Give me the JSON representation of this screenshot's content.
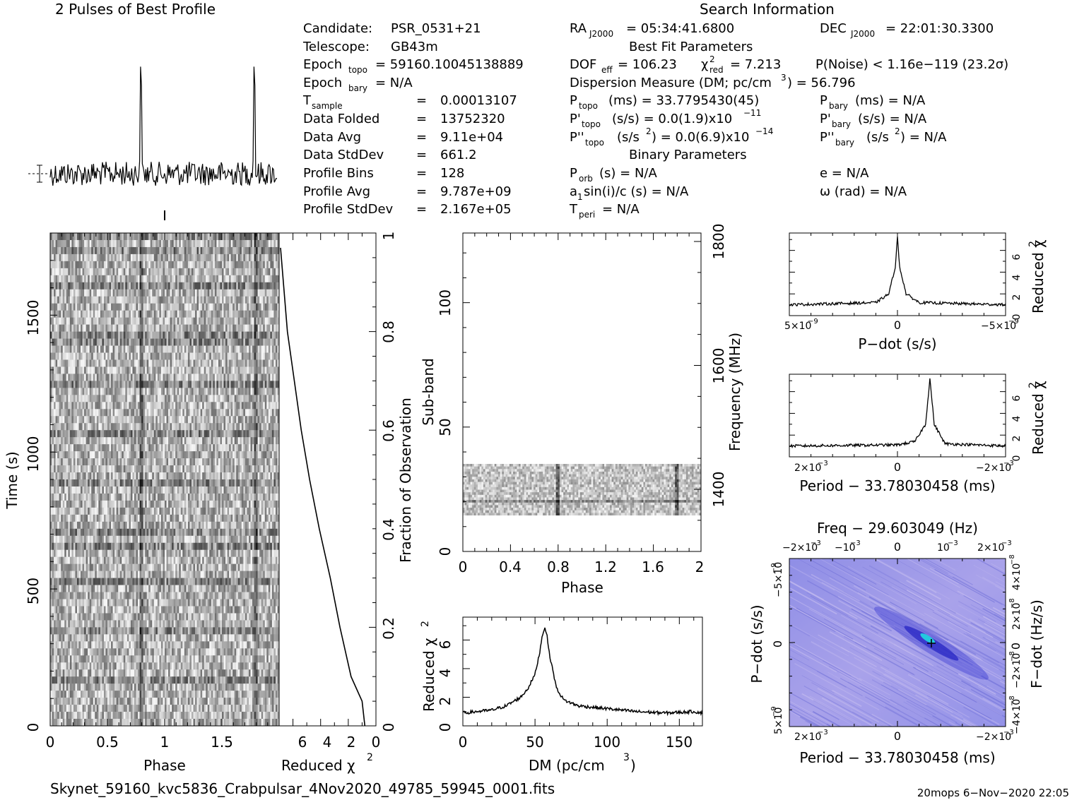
{
  "titles": {
    "profile": "2 Pulses of Best Profile",
    "search": "Search Information",
    "best_fit": "Best Fit Parameters",
    "binary": "Binary Parameters",
    "ppdot": "Freq − 29.603049 (Hz)"
  },
  "info": {
    "candidate_label": "Candidate:",
    "candidate": "PSR_0531+21",
    "telescope_label": "Telescope:",
    "telescope": "GB43m",
    "epoch_topo_label": "Epoch",
    "epoch_topo_sub": "topo",
    "epoch_topo": "= 59160.10045138889",
    "epoch_bary_label": "Epoch",
    "epoch_bary_sub": "bary",
    "epoch_bary": "= N/A",
    "tsample_label": "T",
    "tsample_sub": "sample",
    "tsample": "0.00013107",
    "folded_label": "Data Folded",
    "folded": "13752320",
    "avg_label": "Data Avg",
    "avg": "9.11e+04",
    "std_label": "Data StdDev",
    "std": "661.2",
    "bins_label": "Profile Bins",
    "bins": "128",
    "pavg_label": "Profile Avg",
    "pavg": "9.787e+09",
    "pstd_label": "Profile StdDev",
    "pstd": "2.167e+05",
    "eq": "="
  },
  "search": {
    "ra_label": "RA",
    "ra_sub": "J2000",
    "ra": "= 05:34:41.6800",
    "dec_label": "DEC",
    "dec_sub": "J2000",
    "dec": "= 22:01:30.3300",
    "dof_label": "DOF",
    "dof_sub": "eff",
    "dof": "= 106.23",
    "chi_label": "χ",
    "chi_sup": "2",
    "chi_sub": "red",
    "chi": "= 7.213",
    "pnoise": "P(Noise) < 1.16e−119   (23.2σ)",
    "dm_line_a": "Dispersion Measure (DM; pc/cm",
    "dm_line_sup": "3",
    "dm_line_b": ") = 56.796",
    "ptopo_label": "P",
    "ptopo_sub": "topo",
    "ptopo": "(ms) =  33.7795430(45)",
    "pbary_label": "P",
    "pbary_sub": "bary",
    "pbary": "(ms) = N/A",
    "pdtopo_label": "P'",
    "pdtopo_sub": "topo",
    "pdtopo": "(s/s) = 0.0(1.9)x10",
    "pdtopo_exp": "−11",
    "pdbary_label": "P'",
    "pdbary_sub": "bary",
    "pdbary": "(s/s) = N/A",
    "pddtopo_label": "P''",
    "pddtopo_sub": "topo",
    "pddtopo_a": "(s/s",
    "pddtopo_sup": "2",
    "pddtopo_b": ") = 0.0(6.9)x10",
    "pddtopo_exp": "−14",
    "pddbary_label": "P''",
    "pddbary_sub": "bary",
    "pddbary_a": "(s/s",
    "pddbary_sup": "2",
    "pddbary_b": ") = N/A",
    "porb_label": "P",
    "porb_sub": "orb",
    "porb": "(s) = N/A",
    "e": "e = N/A",
    "a1_label": "a",
    "a1_sub": "1",
    "a1": "sin(i)/c (s) = N/A",
    "omega": "ω (rad) = N/A",
    "tperi_label": "T",
    "tperi_sub": "peri",
    "tperi": "= N/A"
  },
  "axes": {
    "time_label": "Time (s)",
    "phase_label": "Phase",
    "redchi_label": "Reduced χ",
    "chi_sup": "2",
    "frac_label": "Fraction of Observation",
    "subband_label": "Sub-band",
    "freq_label": "Frequency (MHz)",
    "dm_label_a": "DM (pc/cm",
    "dm_label_sup": "3",
    "dm_label_b": ")",
    "pdot_label": "P−dot (s/s)",
    "period_label": "Period − 33.78030458 (ms)",
    "fdot_label": "F−dot (Hz/s)",
    "tick_2e3": "2×10",
    "exp_m3": "−3",
    "tick_m2e3": "−2×10",
    "tick_1e3": "10",
    "tick_m1e3": "−10",
    "tick_5e9": "5×10",
    "tick_m5e9": "−5×10",
    "exp_m9": "−9",
    "tick_2e8": "2×10",
    "tick_m2e8": "−2×10",
    "tick_m4e8": "−4×10",
    "tick_4e8": "4×10",
    "exp_m8": "−8"
  },
  "footer": {
    "filename": "Skynet_59160_kvc5836_Crabpulsar_4Nov2020_49785_59945_0001.fits",
    "stamp": "20mops   6−Nov−2020 22:05"
  },
  "chart_data": [
    {
      "type": "line",
      "name_hint": "profile",
      "title": "2 Pulses of Best Profile",
      "xlim": [
        0,
        2
      ],
      "peaks_at_phase": [
        0.8,
        1.8
      ],
      "bins": 128
    },
    {
      "type": "heatmap",
      "xlabel": "Phase",
      "ylabel": "Time (s)",
      "xlim": [
        0,
        2
      ],
      "ylim": [
        0,
        1800
      ],
      "xticks": [
        "0",
        "0.5",
        "1",
        "1.5"
      ],
      "yticks": [
        "0",
        "500",
        "1000",
        "1500"
      ]
    },
    {
      "type": "line",
      "xlabel": "Reduced χ²",
      "ylabel": "Fraction of Observation",
      "xlim": [
        7,
        0
      ],
      "ylim": [
        0,
        1
      ],
      "xticks": [
        "6",
        "4",
        "2",
        "0"
      ],
      "yticks": [
        "0",
        "0.2",
        "0.4",
        "0.6",
        "0.8",
        "1"
      ],
      "x": [
        0.8,
        1.0,
        1.8,
        2.6,
        3.3,
        4.1,
        4.8,
        5.4,
        5.9,
        6.4,
        6.9
      ],
      "y": [
        0.0,
        0.05,
        0.1,
        0.2,
        0.3,
        0.4,
        0.5,
        0.6,
        0.7,
        0.8,
        0.97
      ]
    },
    {
      "type": "heatmap",
      "xlabel": "Phase",
      "ylabel": "Sub-band",
      "xlim": [
        0,
        2
      ],
      "ylim": [
        0,
        128
      ],
      "xticks": [
        "0",
        "0.4",
        "0.8",
        "1.2",
        "1.6",
        "2"
      ],
      "yticks": [
        "0",
        "50",
        "100"
      ],
      "y2label": "Frequency (MHz)",
      "y2ticks": [
        "1400",
        "1600",
        "1800"
      ],
      "data_band": [
        15,
        35
      ]
    },
    {
      "type": "line",
      "xlabel": "DM (pc/cm³)",
      "ylabel": "Reduced χ²",
      "xlim": [
        0,
        166
      ],
      "ylim": [
        0,
        7.6
      ],
      "xticks": [
        "0",
        "50",
        "100",
        "150"
      ],
      "yticks": [
        "0",
        "2",
        "4",
        "6"
      ],
      "x": [
        0,
        20,
        30,
        40,
        45,
        50,
        53,
        55,
        56.8,
        58,
        60,
        65,
        70,
        80,
        100,
        120,
        140,
        160,
        166
      ],
      "y": [
        0.9,
        1.1,
        1.4,
        2.0,
        2.6,
        3.6,
        5.0,
        6.3,
        6.9,
        6.5,
        5.0,
        2.6,
        1.8,
        1.4,
        1.2,
        1.0,
        0.9,
        1.0,
        0.9
      ]
    },
    {
      "type": "line",
      "xlabel": "P−dot (s/s)",
      "ylabel": "Reduced χ²",
      "xlim": [
        5e-09,
        -5e-09
      ],
      "ylim": [
        0,
        7.6
      ],
      "xticks": [
        "5×10⁻⁹",
        "0",
        "−5×10⁻⁹"
      ],
      "yticks": [
        "0",
        "2",
        "4",
        "6"
      ],
      "x": [
        5e-09,
        1e-09,
        4e-10,
        1e-10,
        0,
        -1e-10,
        -4e-10,
        -1e-09,
        -5e-09
      ],
      "y": [
        1.0,
        1.2,
        2.0,
        4.5,
        7.2,
        4.5,
        2.0,
        1.2,
        1.0
      ]
    },
    {
      "type": "line",
      "xlabel": "Period − 33.78030458 (ms)",
      "ylabel": "Reduced χ²",
      "xlim": [
        0.0025,
        -0.0025
      ],
      "ylim": [
        0,
        7.6
      ],
      "xticks": [
        "2×10⁻³",
        "0",
        "−2×10⁻³"
      ],
      "yticks": [
        "0",
        "2",
        "4",
        "6"
      ],
      "x": [
        0.0025,
        0,
        -0.0004,
        -0.00065,
        -0.00075,
        -0.00085,
        -0.0011,
        -0.0025
      ],
      "y": [
        1.0,
        1.1,
        1.4,
        3.0,
        7.2,
        3.0,
        1.2,
        1.0
      ]
    },
    {
      "type": "heatmap",
      "title": "Freq − 29.603049 (Hz)",
      "xlabel": "Period − 33.78030458 (ms)",
      "ylabel": "P−dot (s/s)",
      "y2label": "F−dot (Hz/s)",
      "xlim": [
        0.0025,
        -0.0025
      ],
      "ylim": [
        5e-09,
        -5e-09
      ],
      "peak": {
        "period": -0.00075,
        "pdot": 0
      }
    }
  ]
}
